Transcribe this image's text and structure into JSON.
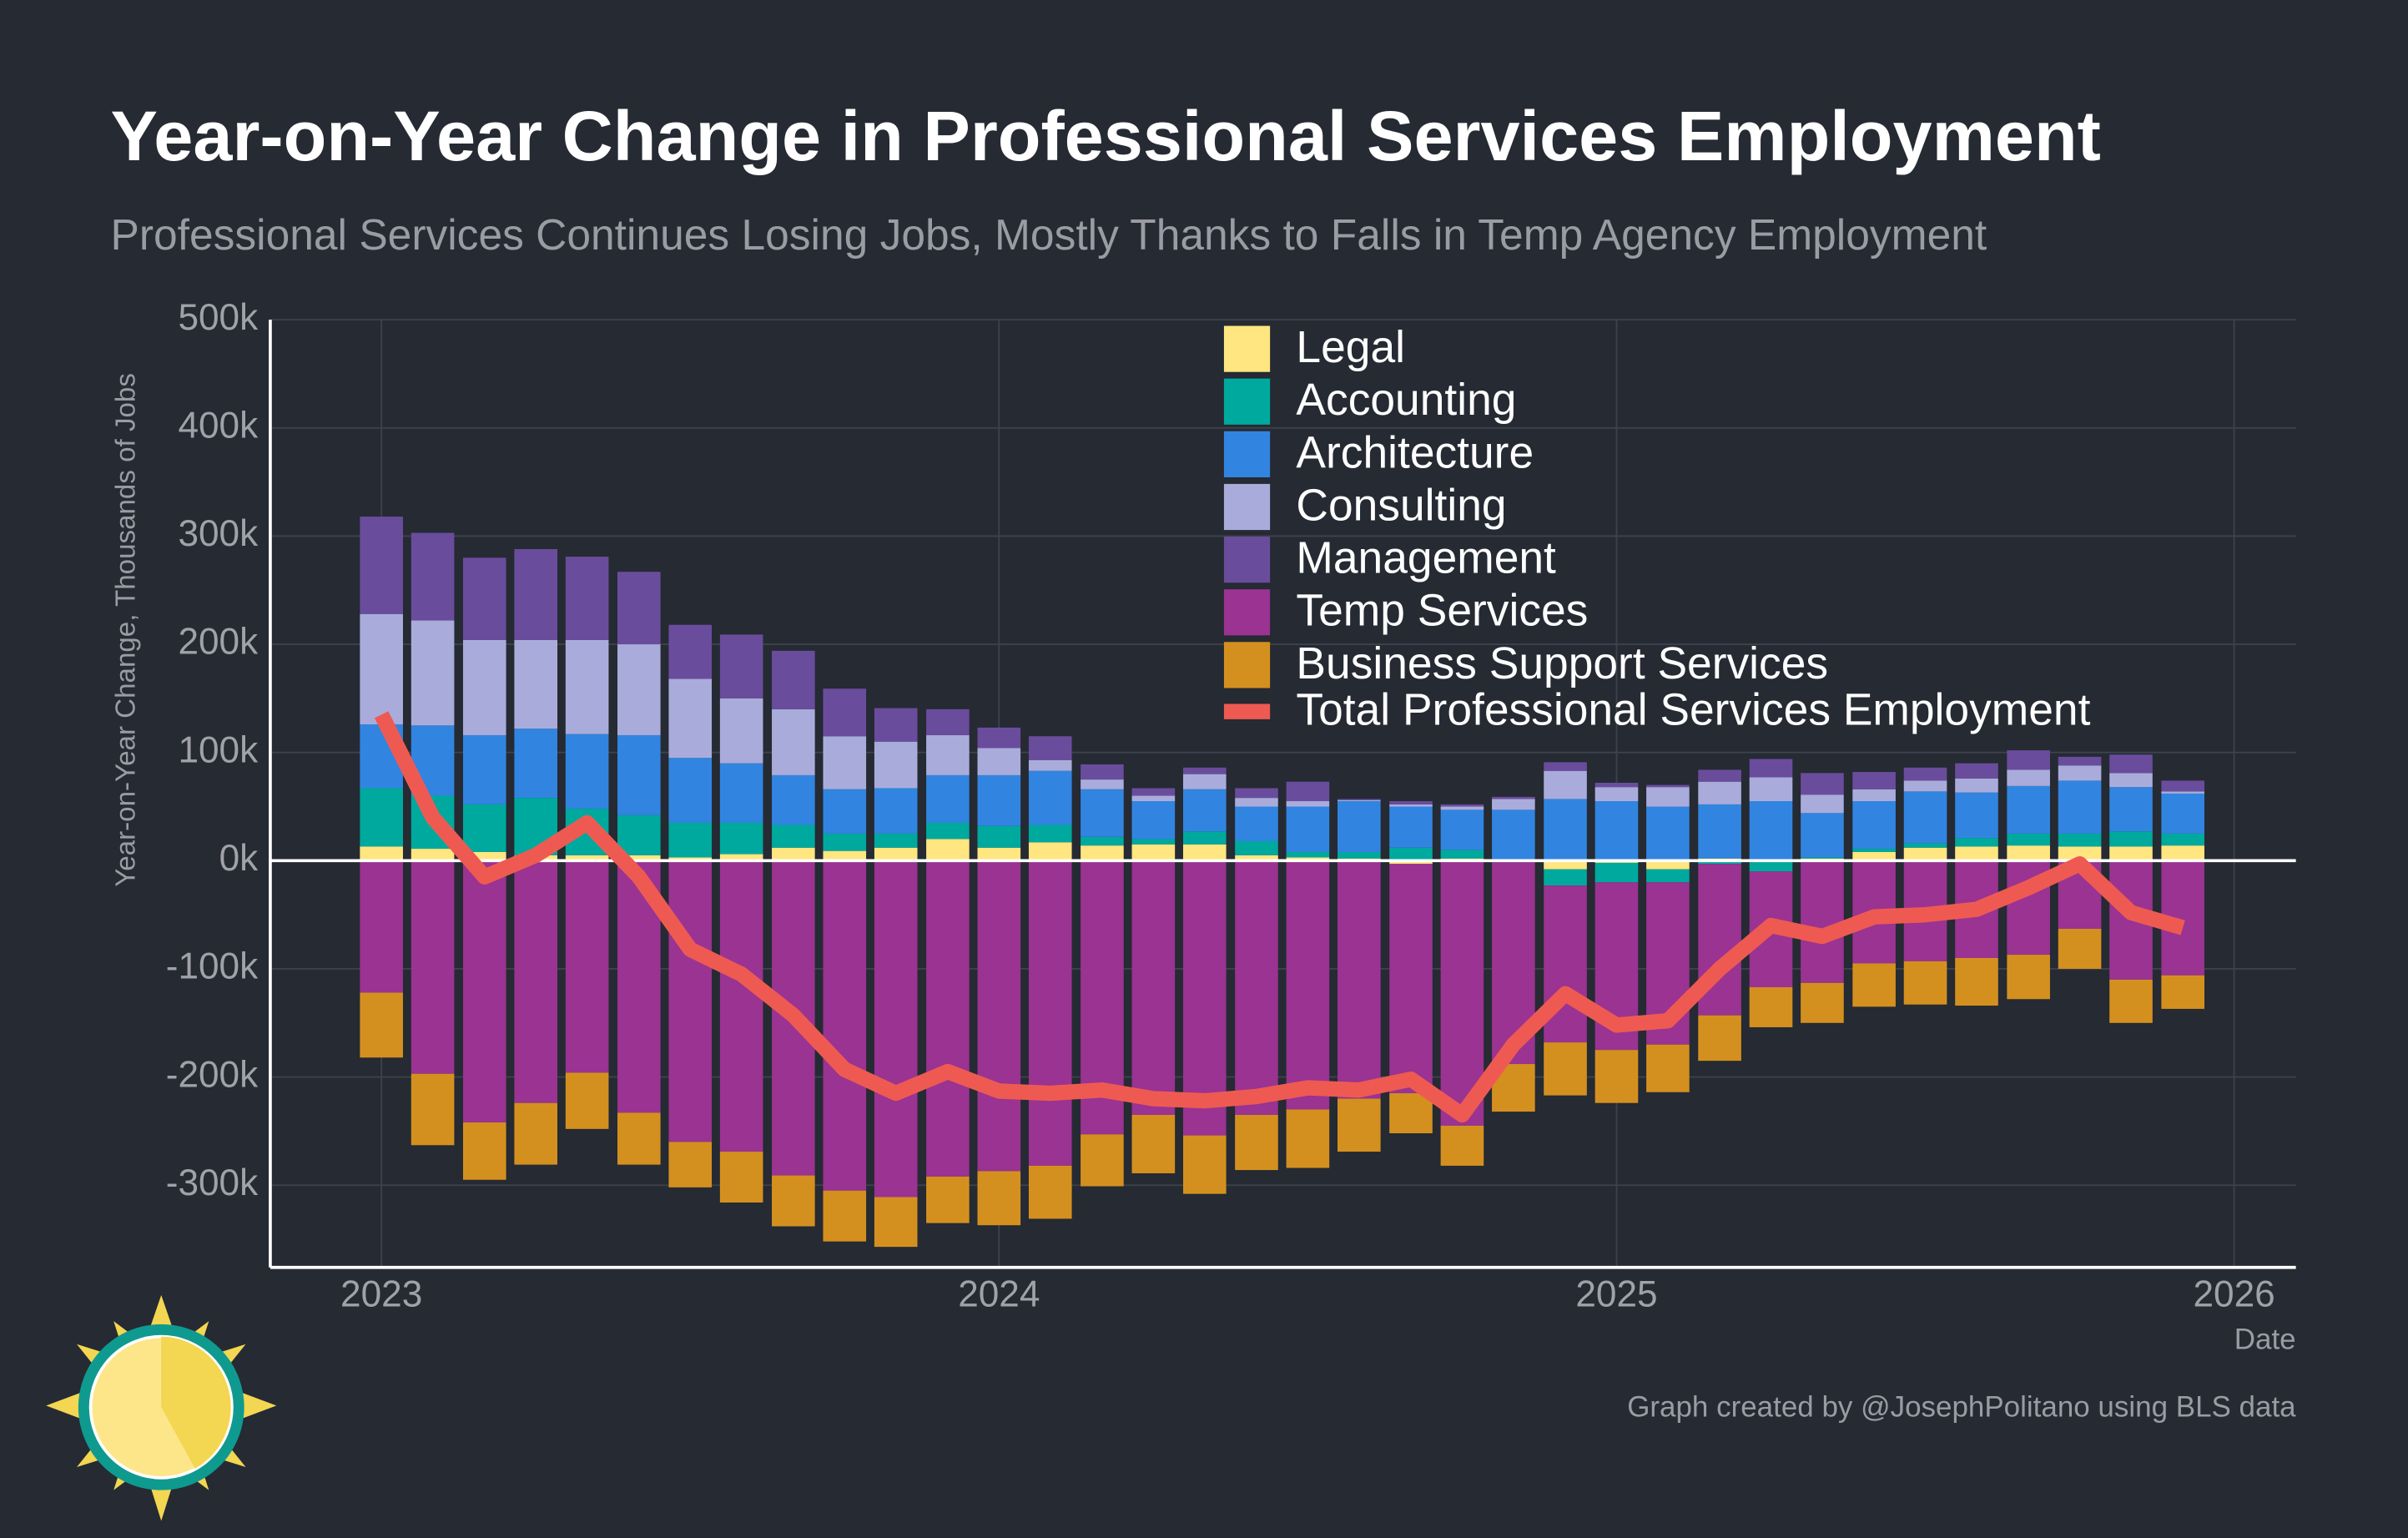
{
  "chart_data": {
    "type": "bar",
    "title": "Year-on-Year Change in Professional Services Employment",
    "subtitle": "Professional Services Continues Losing Jobs, Mostly Thanks to Falls in Temp Agency Employment",
    "y_label": "Year-on-Year Change, Thousands of Jobs",
    "x_label": "Date",
    "caption": "Graph created by @JosephPolitano using BLS data",
    "x": [
      2023,
      2023.083,
      2023.167,
      2023.25,
      2023.333,
      2023.417,
      2023.5,
      2023.583,
      2023.667,
      2023.75,
      2023.833,
      2023.917,
      2024,
      2024.083,
      2024.167,
      2024.25,
      2024.333,
      2024.417,
      2024.5,
      2024.583,
      2024.667,
      2024.75,
      2024.833,
      2024.917,
      2025,
      2025.083,
      2025.167,
      2025.25,
      2025.333,
      2025.417,
      2025.5,
      2025.583,
      2025.667,
      2025.75,
      2025.833,
      2025.917
    ],
    "xlim": [
      2022.82,
      2026.1
    ],
    "xticks": [
      2023,
      2024,
      2025,
      2026
    ],
    "ylim": [
      -376,
      500
    ],
    "yticks": [
      {
        "value": -300,
        "label": "-300k"
      },
      {
        "value": -200,
        "label": "-200k"
      },
      {
        "value": -100,
        "label": "-100k"
      },
      {
        "value": 0,
        "label": "0k"
      },
      {
        "value": 100,
        "label": "100k"
      },
      {
        "value": 200,
        "label": "200k"
      },
      {
        "value": 300,
        "label": "300k"
      },
      {
        "value": 400,
        "label": "400k"
      },
      {
        "value": 500,
        "label": "500k"
      }
    ],
    "grid": true,
    "legend": "top",
    "series": [
      {
        "name": "Legal",
        "type": "bar",
        "color": "#ffe680",
        "values": [
          13,
          11,
          8,
          5,
          5,
          5,
          3,
          6,
          12,
          9,
          12,
          20,
          12,
          17,
          14,
          15,
          15,
          5,
          3,
          2,
          -3,
          2,
          1,
          -8,
          -2,
          -8,
          2,
          1,
          2,
          8,
          12,
          13,
          14,
          13,
          13,
          14
        ]
      },
      {
        "name": "Accounting",
        "type": "bar",
        "color": "#00a99d",
        "values": [
          54,
          49,
          44,
          53,
          43,
          37,
          32,
          29,
          21,
          16,
          13,
          15,
          20,
          16,
          8,
          5,
          12,
          13,
          5,
          6,
          12,
          8,
          0,
          -15,
          -18,
          -12,
          -3,
          -10,
          1,
          3,
          4,
          8,
          11,
          12,
          14,
          11
        ]
      },
      {
        "name": "Architecture",
        "type": "bar",
        "color": "#3185e0",
        "values": [
          59,
          65,
          64,
          64,
          69,
          74,
          60,
          55,
          46,
          41,
          42,
          44,
          47,
          50,
          44,
          35,
          39,
          32,
          42,
          47,
          38,
          37,
          46,
          57,
          55,
          50,
          50,
          54,
          41,
          44,
          48,
          42,
          44,
          49,
          41,
          37
        ]
      },
      {
        "name": "Consulting",
        "type": "bar",
        "color": "#a9acdb",
        "values": [
          102,
          97,
          88,
          82,
          87,
          84,
          73,
          60,
          61,
          49,
          43,
          37,
          25,
          10,
          9,
          5,
          14,
          8,
          5,
          1,
          2,
          3,
          10,
          26,
          13,
          18,
          21,
          22,
          17,
          11,
          10,
          13,
          15,
          14,
          13,
          2
        ]
      },
      {
        "name": "Management",
        "type": "bar",
        "color": "#6a4c9c",
        "values": [
          90,
          81,
          76,
          84,
          77,
          67,
          50,
          59,
          54,
          44,
          31,
          24,
          19,
          22,
          14,
          7,
          6,
          9,
          18,
          1,
          3,
          2,
          2,
          8,
          4,
          2,
          11,
          17,
          20,
          16,
          12,
          14,
          18,
          8,
          17,
          10
        ]
      },
      {
        "name": "Temp Services",
        "type": "bar",
        "color": "#9a3391",
        "values": [
          -122,
          -197,
          -242,
          -224,
          -196,
          -233,
          -260,
          -269,
          -291,
          -305,
          -311,
          -292,
          -287,
          -282,
          -253,
          -235,
          -254,
          -235,
          -230,
          -220,
          -212,
          -245,
          -188,
          -145,
          -155,
          -150,
          -140,
          -107,
          -113,
          -95,
          -93,
          -90,
          -87,
          -63,
          -110,
          -106
        ]
      },
      {
        "name": "Business Support Services",
        "type": "bar",
        "color": "#d4901f",
        "values": [
          -60,
          -66,
          -53,
          -57,
          -52,
          -48,
          -42,
          -47,
          -47,
          -47,
          -46,
          -43,
          -50,
          -49,
          -48,
          -54,
          -54,
          -51,
          -54,
          -49,
          -37,
          -37,
          -44,
          -49,
          -49,
          -44,
          -42,
          -37,
          -37,
          -40,
          -40,
          -44,
          -41,
          -37,
          -40,
          -31
        ]
      },
      {
        "name": "Total Professional Services Employment",
        "type": "line",
        "color": "#ee5a52",
        "values": [
          135,
          40,
          -15,
          5,
          35,
          -15,
          -82,
          -105,
          -143,
          -193,
          -215,
          -195,
          -213,
          -215,
          -212,
          -220,
          -222,
          -218,
          -210,
          -212,
          -202,
          -235,
          -170,
          -123,
          -152,
          -148,
          -100,
          -60,
          -70,
          -52,
          -50,
          -45,
          -25,
          -3,
          -48,
          -62
        ]
      }
    ]
  }
}
